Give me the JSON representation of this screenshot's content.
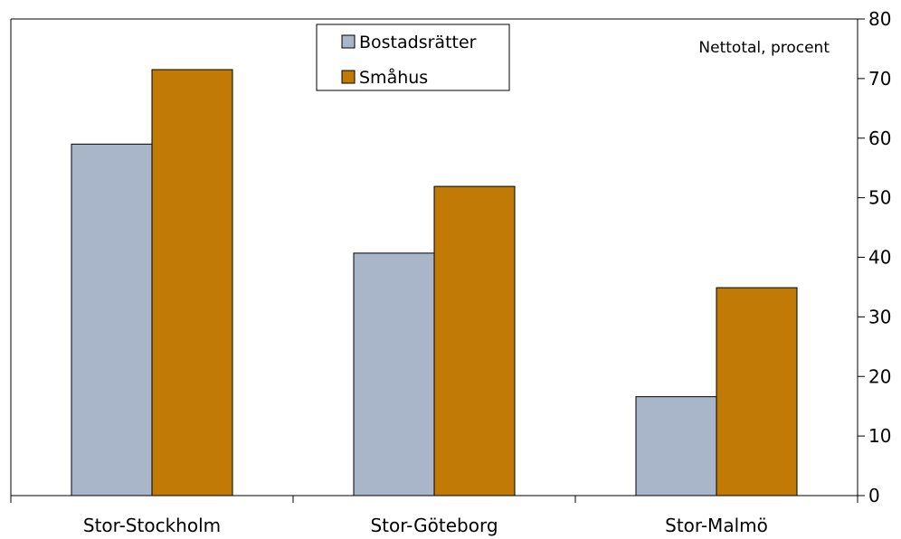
{
  "chart_data": {
    "type": "bar",
    "categories": [
      "Stor-Stockholm",
      "Stor-Göteborg",
      "Stor-Malmö"
    ],
    "series": [
      {
        "name": "Bostadsrätter",
        "values": [
          59,
          40.7,
          16.6
        ],
        "color": "#a9b5c8"
      },
      {
        "name": "Småhus",
        "values": [
          71.5,
          51.9,
          34.9
        ],
        "color": "#c07a05"
      }
    ],
    "annotation": "Nettotal, procent",
    "ylim": [
      0,
      80
    ],
    "yticks": [
      0,
      10,
      20,
      30,
      40,
      50,
      60,
      70,
      80
    ],
    "y_axis_side": "right",
    "grid": false,
    "legend_position": "top-center"
  }
}
